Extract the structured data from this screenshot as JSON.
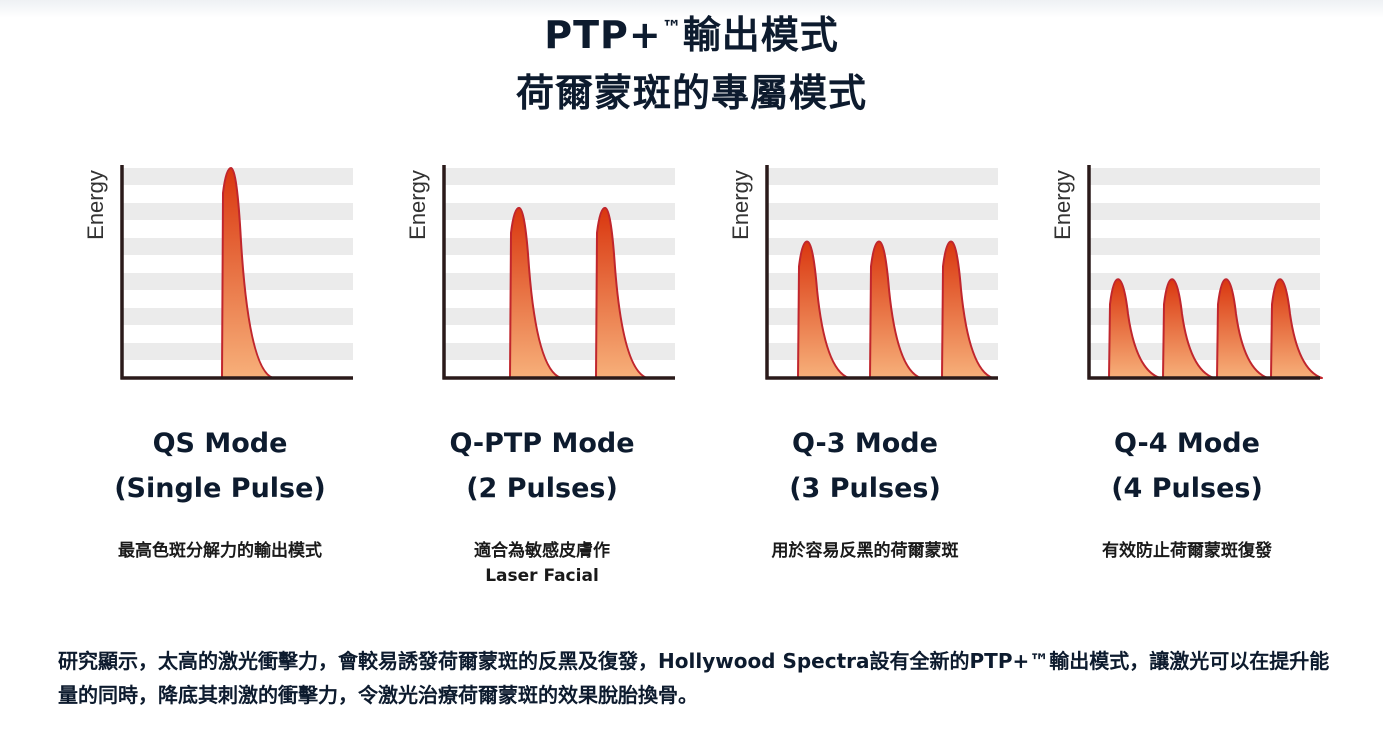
{
  "title": {
    "line1_prefix": "PTP+",
    "line1_tm": "™",
    "line1_suffix": "輸出模式",
    "line2": "荷爾蒙斑的專屬模式"
  },
  "colors": {
    "title": "#0d1b2e",
    "axis": "#2a1a1a",
    "grid_band": "#ebebeb",
    "pulse_stroke": "#c0262d",
    "pulse_fill_top": "#d9360f",
    "pulse_fill_bottom": "#f7b07a"
  },
  "panels": [
    {
      "name_line1": "QS Mode",
      "name_line2": "(Single Pulse)",
      "description": "最高色斑分解力的輸出模式",
      "description2": "",
      "chart": {
        "type": "pulse-diagram",
        "ylabel": "Energy",
        "pulses": 1,
        "relative_peak": 1.0
      }
    },
    {
      "name_line1": "Q-PTP Mode",
      "name_line2": "(2 Pulses)",
      "description": "適合為敏感皮膚作",
      "description2": "Laser Facial",
      "chart": {
        "type": "pulse-diagram",
        "ylabel": "Energy",
        "pulses": 2,
        "relative_peak": 0.81
      }
    },
    {
      "name_line1": "Q-3 Mode",
      "name_line2": "(3 Pulses)",
      "description": "用於容易反黑的荷爾蒙斑",
      "description2": "",
      "chart": {
        "type": "pulse-diagram",
        "ylabel": "Energy",
        "pulses": 3,
        "relative_peak": 0.65
      }
    },
    {
      "name_line1": "Q-4 Mode",
      "name_line2": "(4 Pulses)",
      "description": "有效防止荷爾蒙斑復發",
      "description2": "",
      "chart": {
        "type": "pulse-diagram",
        "ylabel": "Energy",
        "pulses": 4,
        "relative_peak": 0.47
      }
    }
  ],
  "footer": {
    "text": "研究顯示，太高的激光衝擊力，會較易誘發荷爾蒙斑的反黑及復發，Hollywood Spectra設有全新的PTP+™輸出模式，讓激光可以在提升能量的同時，降底其刺激的衝擊力，令激光治療荷爾蒙斑的效果脫胎換骨。"
  }
}
